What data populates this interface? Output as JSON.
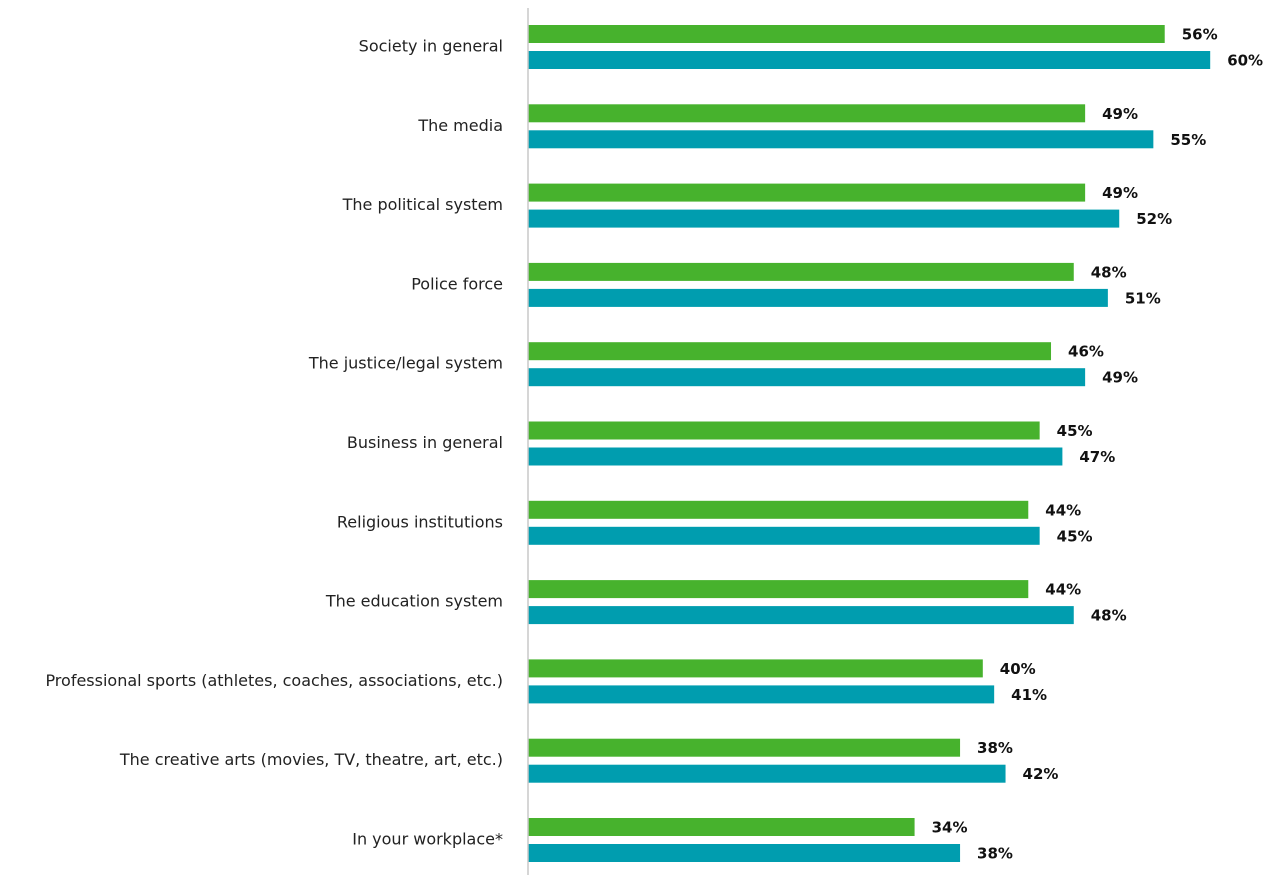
{
  "chart_data": {
    "type": "bar",
    "orientation": "horizontal",
    "categories": [
      "Society in general",
      "The media",
      "The political system",
      "Police force",
      "The justice/legal system",
      "Business in general",
      "Religious institutions",
      "The education system",
      "Professional sports (athletes, coaches, associations, etc.)",
      "The creative arts (movies, TV, theatre, art, etc.)",
      "In your workplace*"
    ],
    "series": [
      {
        "color": "#47b22d",
        "values": [
          56,
          49,
          49,
          48,
          46,
          45,
          44,
          44,
          40,
          38,
          34
        ]
      },
      {
        "color": "#009daf",
        "values": [
          60,
          55,
          52,
          51,
          49,
          47,
          45,
          48,
          41,
          42,
          38
        ]
      }
    ],
    "value_suffix": "%",
    "xlim": [
      0,
      60
    ],
    "grid": false,
    "legend": "none",
    "axis_color": "#c8c8c8"
  }
}
